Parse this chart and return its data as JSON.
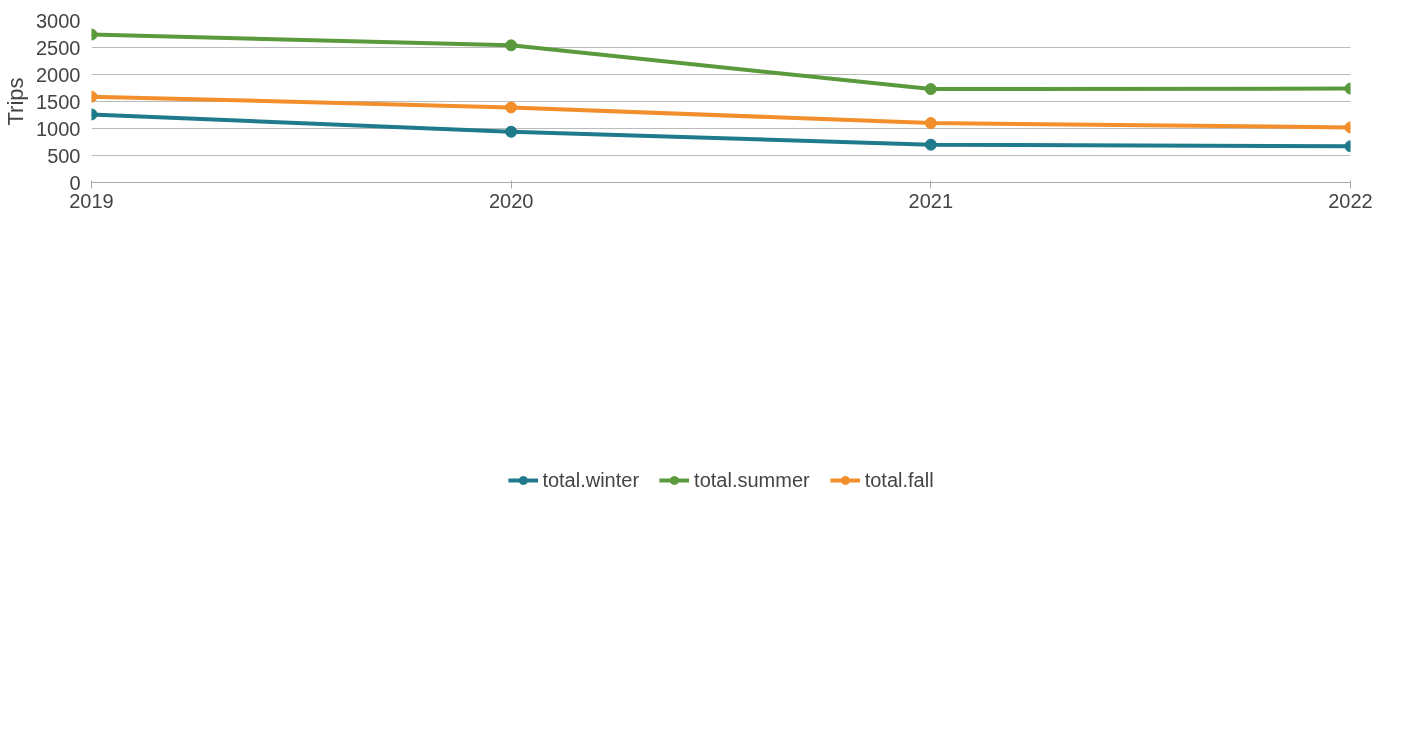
{
  "chart_data": {
    "type": "line",
    "ylabel": "Trips",
    "x": [
      2019,
      2020,
      2021,
      2022
    ],
    "series": [
      {
        "name": "total.winter",
        "color": "#1f7a8c",
        "values": [
          1260,
          940,
          700,
          670
        ]
      },
      {
        "name": "total.summer",
        "color": "#5a9a3c",
        "values": [
          2740,
          2540,
          1730,
          1740
        ]
      },
      {
        "name": "total.fall",
        "color": "#f28e2b",
        "values": [
          1590,
          1390,
          1100,
          1020
        ]
      }
    ],
    "xlim": [
      2019,
      2022
    ],
    "xticks": [
      2019,
      2020,
      2021,
      2022
    ],
    "ylim": [
      0,
      3000
    ],
    "yticks": [
      0,
      500,
      1000,
      1500,
      2000,
      2500,
      3000
    ],
    "grid": "y",
    "legend": "bottom",
    "marker": "circle",
    "line_style": "solid"
  }
}
